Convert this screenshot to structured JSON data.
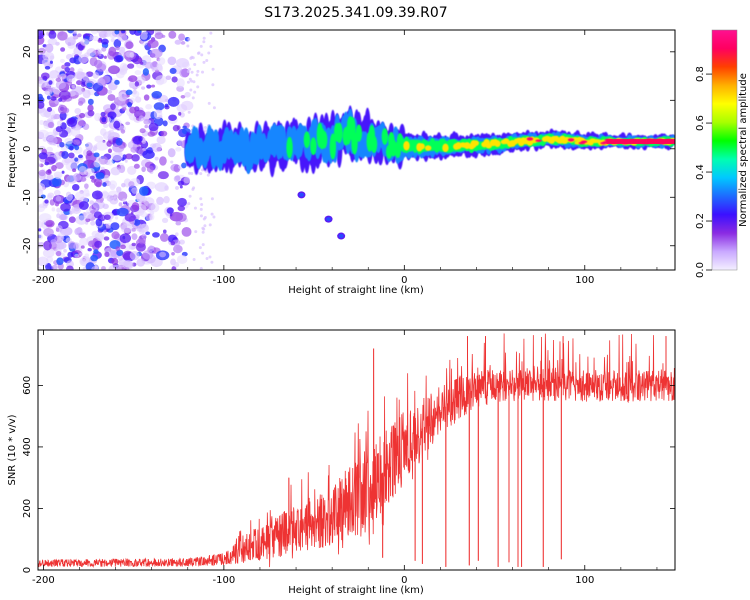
{
  "title": "S173.2025.341.09.39.R07",
  "chart_data": [
    {
      "type": "heatmap",
      "xlabel": "Height of straight line (km)",
      "ylabel": "Frequency (Hz)",
      "xlim": [
        -203,
        150
      ],
      "ylim": [
        -25,
        24.5
      ],
      "xticks": [
        -200,
        -100,
        0,
        100
      ],
      "yticks": [
        -20,
        -10,
        0,
        10,
        20
      ],
      "colorbar": {
        "label": "Normalized spectral amplitude",
        "range": [
          0,
          0.98
        ],
        "ticks": [
          0.0,
          0.2,
          0.4,
          0.6,
          0.8
        ],
        "colors": [
          "#f4f0ff",
          "#c9a8ff",
          "#8a2be2",
          "#3b10ff",
          "#1e6bff",
          "#00c8ff",
          "#00ffb0",
          "#00ff00",
          "#a8ff00",
          "#ffff00",
          "#ffb000",
          "#ff4000",
          "#ff0060",
          "#ff1090"
        ]
      },
      "noise_region": {
        "x": [
          -203,
          -120
        ],
        "freq": [
          -25,
          24.5
        ],
        "amplitude": [
          0.02,
          0.3
        ]
      },
      "ridge": [
        {
          "x": -120,
          "freq": 0.0,
          "width": 3.5,
          "amp": 0.3
        },
        {
          "x": -100,
          "freq": 0.5,
          "width": 4.0,
          "amp": 0.3
        },
        {
          "x": -80,
          "freq": 0.0,
          "width": 4.0,
          "amp": 0.3
        },
        {
          "x": -60,
          "freq": 0.5,
          "width": 4.0,
          "amp": 0.32
        },
        {
          "x": -45,
          "freq": 1.5,
          "width": 4.5,
          "amp": 0.35
        },
        {
          "x": -30,
          "freq": 3.0,
          "width": 4.5,
          "amp": 0.38
        },
        {
          "x": -15,
          "freq": 1.5,
          "width": 3.5,
          "amp": 0.4
        },
        {
          "x": 0,
          "freq": 0.5,
          "width": 2.8,
          "amp": 0.45
        },
        {
          "x": 25,
          "freq": 0.5,
          "width": 2.3,
          "amp": 0.5
        },
        {
          "x": 50,
          "freq": 1.0,
          "width": 2.0,
          "amp": 0.55
        },
        {
          "x": 80,
          "freq": 2.0,
          "width": 1.8,
          "amp": 0.7
        },
        {
          "x": 100,
          "freq": 1.5,
          "width": 1.6,
          "amp": 0.8
        },
        {
          "x": 120,
          "freq": 1.5,
          "width": 1.3,
          "amp": 0.9
        },
        {
          "x": 150,
          "freq": 1.5,
          "width": 1.3,
          "amp": 0.95
        }
      ],
      "stray_points": [
        {
          "x": -57,
          "freq": -9.5
        },
        {
          "x": -42,
          "freq": -14.5
        },
        {
          "x": -35,
          "freq": -18
        }
      ]
    },
    {
      "type": "line",
      "xlabel": "Height of straight line (km)",
      "ylabel": "SNR (10 * v/v)",
      "xlim": [
        -203,
        150
      ],
      "ylim": [
        0,
        780
      ],
      "xticks": [
        -200,
        -100,
        0,
        100
      ],
      "yticks": [
        0,
        200,
        400,
        600
      ],
      "color": "#ee3333",
      "envelope": [
        {
          "x": -203,
          "mean": 22,
          "spread": 12
        },
        {
          "x": -120,
          "mean": 25,
          "spread": 14
        },
        {
          "x": -100,
          "mean": 35,
          "spread": 20
        },
        {
          "x": -80,
          "mean": 90,
          "spread": 60
        },
        {
          "x": -60,
          "mean": 130,
          "spread": 80
        },
        {
          "x": -40,
          "mean": 180,
          "spread": 100
        },
        {
          "x": -20,
          "mean": 260,
          "spread": 140
        },
        {
          "x": 0,
          "mean": 400,
          "spread": 120
        },
        {
          "x": 20,
          "mean": 520,
          "spread": 80
        },
        {
          "x": 40,
          "mean": 590,
          "spread": 60
        },
        {
          "x": 60,
          "mean": 600,
          "spread": 55
        },
        {
          "x": 80,
          "mean": 605,
          "spread": 55
        },
        {
          "x": 100,
          "mean": 600,
          "spread": 55
        },
        {
          "x": 120,
          "mean": 595,
          "spread": 50
        },
        {
          "x": 150,
          "mean": 600,
          "spread": 50
        }
      ],
      "spikes_high": [
        {
          "x": -64,
          "y": 300
        },
        {
          "x": -17,
          "y": 720
        },
        {
          "x": 35,
          "y": 760
        },
        {
          "x": 45,
          "y": 760
        },
        {
          "x": 88,
          "y": 760
        },
        {
          "x": 145,
          "y": 760
        }
      ],
      "dropouts": [
        {
          "x": -12,
          "y": 40
        },
        {
          "x": 6,
          "y": 30
        },
        {
          "x": 10,
          "y": 20
        },
        {
          "x": 23,
          "y": 10
        },
        {
          "x": 36,
          "y": 15
        },
        {
          "x": 41,
          "y": 30
        },
        {
          "x": 52,
          "y": 10
        },
        {
          "x": 58,
          "y": 25
        },
        {
          "x": 63,
          "y": 10
        },
        {
          "x": 65,
          "y": 10
        },
        {
          "x": 77,
          "y": 10
        },
        {
          "x": 87,
          "y": 35
        }
      ]
    }
  ]
}
